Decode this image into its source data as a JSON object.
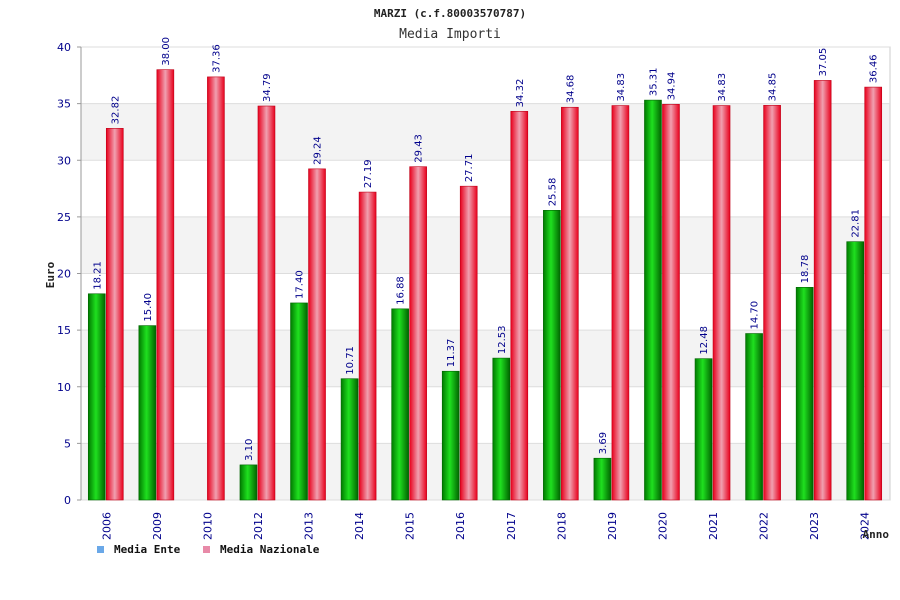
{
  "chart_data": {
    "type": "bar",
    "title": "MARZI (c.f.80003570787)",
    "subtitle": "Media Importi",
    "ylabel": "Euro",
    "xlabel": "Anno",
    "ylim": [
      0,
      40
    ],
    "yticks": [
      "0",
      "5",
      "10",
      "15",
      "20",
      "25",
      "30",
      "35",
      "40"
    ],
    "grid": true,
    "legend_position": "bottom-left",
    "categories": [
      "2006",
      "2009",
      "2010",
      "2012",
      "2013",
      "2014",
      "2015",
      "2016",
      "2017",
      "2018",
      "2019",
      "2020",
      "2021",
      "2022",
      "2023",
      "2024"
    ],
    "series": [
      {
        "name": "Media Ente",
        "legend_color": "#6aa8e8",
        "bar_color": "#00b400",
        "values": [
          18.21,
          15.4,
          null,
          3.1,
          17.4,
          10.71,
          16.88,
          11.37,
          12.53,
          25.58,
          3.69,
          35.31,
          12.48,
          14.7,
          18.78,
          22.81
        ],
        "labels": [
          "18.21",
          "15.40",
          "",
          "3.10",
          "17.40",
          "10.71",
          "16.88",
          "11.37",
          "12.53",
          "25.58",
          "3.69",
          "35.31",
          "12.48",
          "14.70",
          "18.78",
          "22.81"
        ]
      },
      {
        "name": "Media Nazionale",
        "legend_color": "#e88aa8",
        "bar_color": "#e8001c",
        "values": [
          32.82,
          38.0,
          37.36,
          34.79,
          29.24,
          27.19,
          29.43,
          27.71,
          34.32,
          34.68,
          34.83,
          34.94,
          34.83,
          34.85,
          37.05,
          36.46
        ],
        "labels": [
          "32.82",
          "38.00",
          "37.36",
          "34.79",
          "29.24",
          "27.19",
          "29.43",
          "27.71",
          "34.32",
          "34.68",
          "34.83",
          "34.94",
          "34.83",
          "34.85",
          "37.05",
          "36.46"
        ]
      }
    ]
  }
}
